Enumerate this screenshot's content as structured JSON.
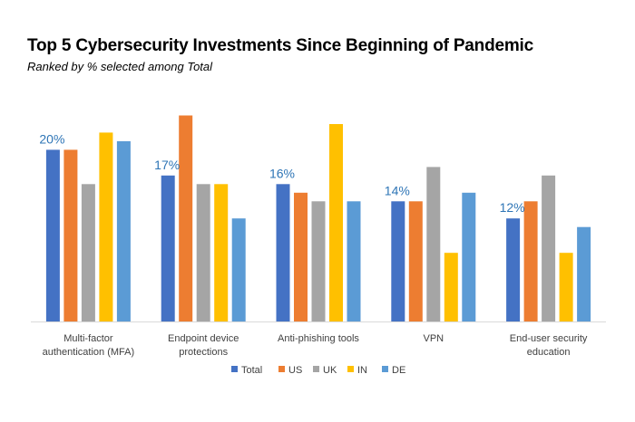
{
  "header": {
    "title": "Top 5 Cybersecurity Investments Since Beginning of Pandemic",
    "subtitle": "Ranked by % selected among Total"
  },
  "chart_data": {
    "type": "bar",
    "title": "Top 5 Cybersecurity Investments Since Beginning of Pandemic",
    "subtitle": "Ranked by % selected among Total",
    "categories": [
      [
        "Multi-factor",
        "authentication (MFA)"
      ],
      [
        "Endpoint device",
        "protections"
      ],
      [
        "Anti-phishing tools"
      ],
      [
        "VPN"
      ],
      [
        "End-user security",
        "education"
      ]
    ],
    "total_labels": [
      "20%",
      "17%",
      "16%",
      "14%",
      "12%"
    ],
    "series": [
      {
        "name": "Total",
        "color": "#4472c4",
        "values": [
          20,
          17,
          16,
          14,
          12
        ]
      },
      {
        "name": "US",
        "color": "#ed7d31",
        "values": [
          20,
          24,
          15,
          14,
          14
        ]
      },
      {
        "name": "UK",
        "color": "#a5a5a5",
        "values": [
          16,
          16,
          14,
          18,
          17
        ]
      },
      {
        "name": "IN",
        "color": "#ffc000",
        "values": [
          22,
          16,
          23,
          8,
          8
        ]
      },
      {
        "name": "DE",
        "color": "#5b9bd5",
        "values": [
          21,
          12,
          14,
          15,
          11
        ]
      }
    ],
    "ylim": [
      0,
      25
    ],
    "legend_position": "bottom",
    "grid": false
  }
}
